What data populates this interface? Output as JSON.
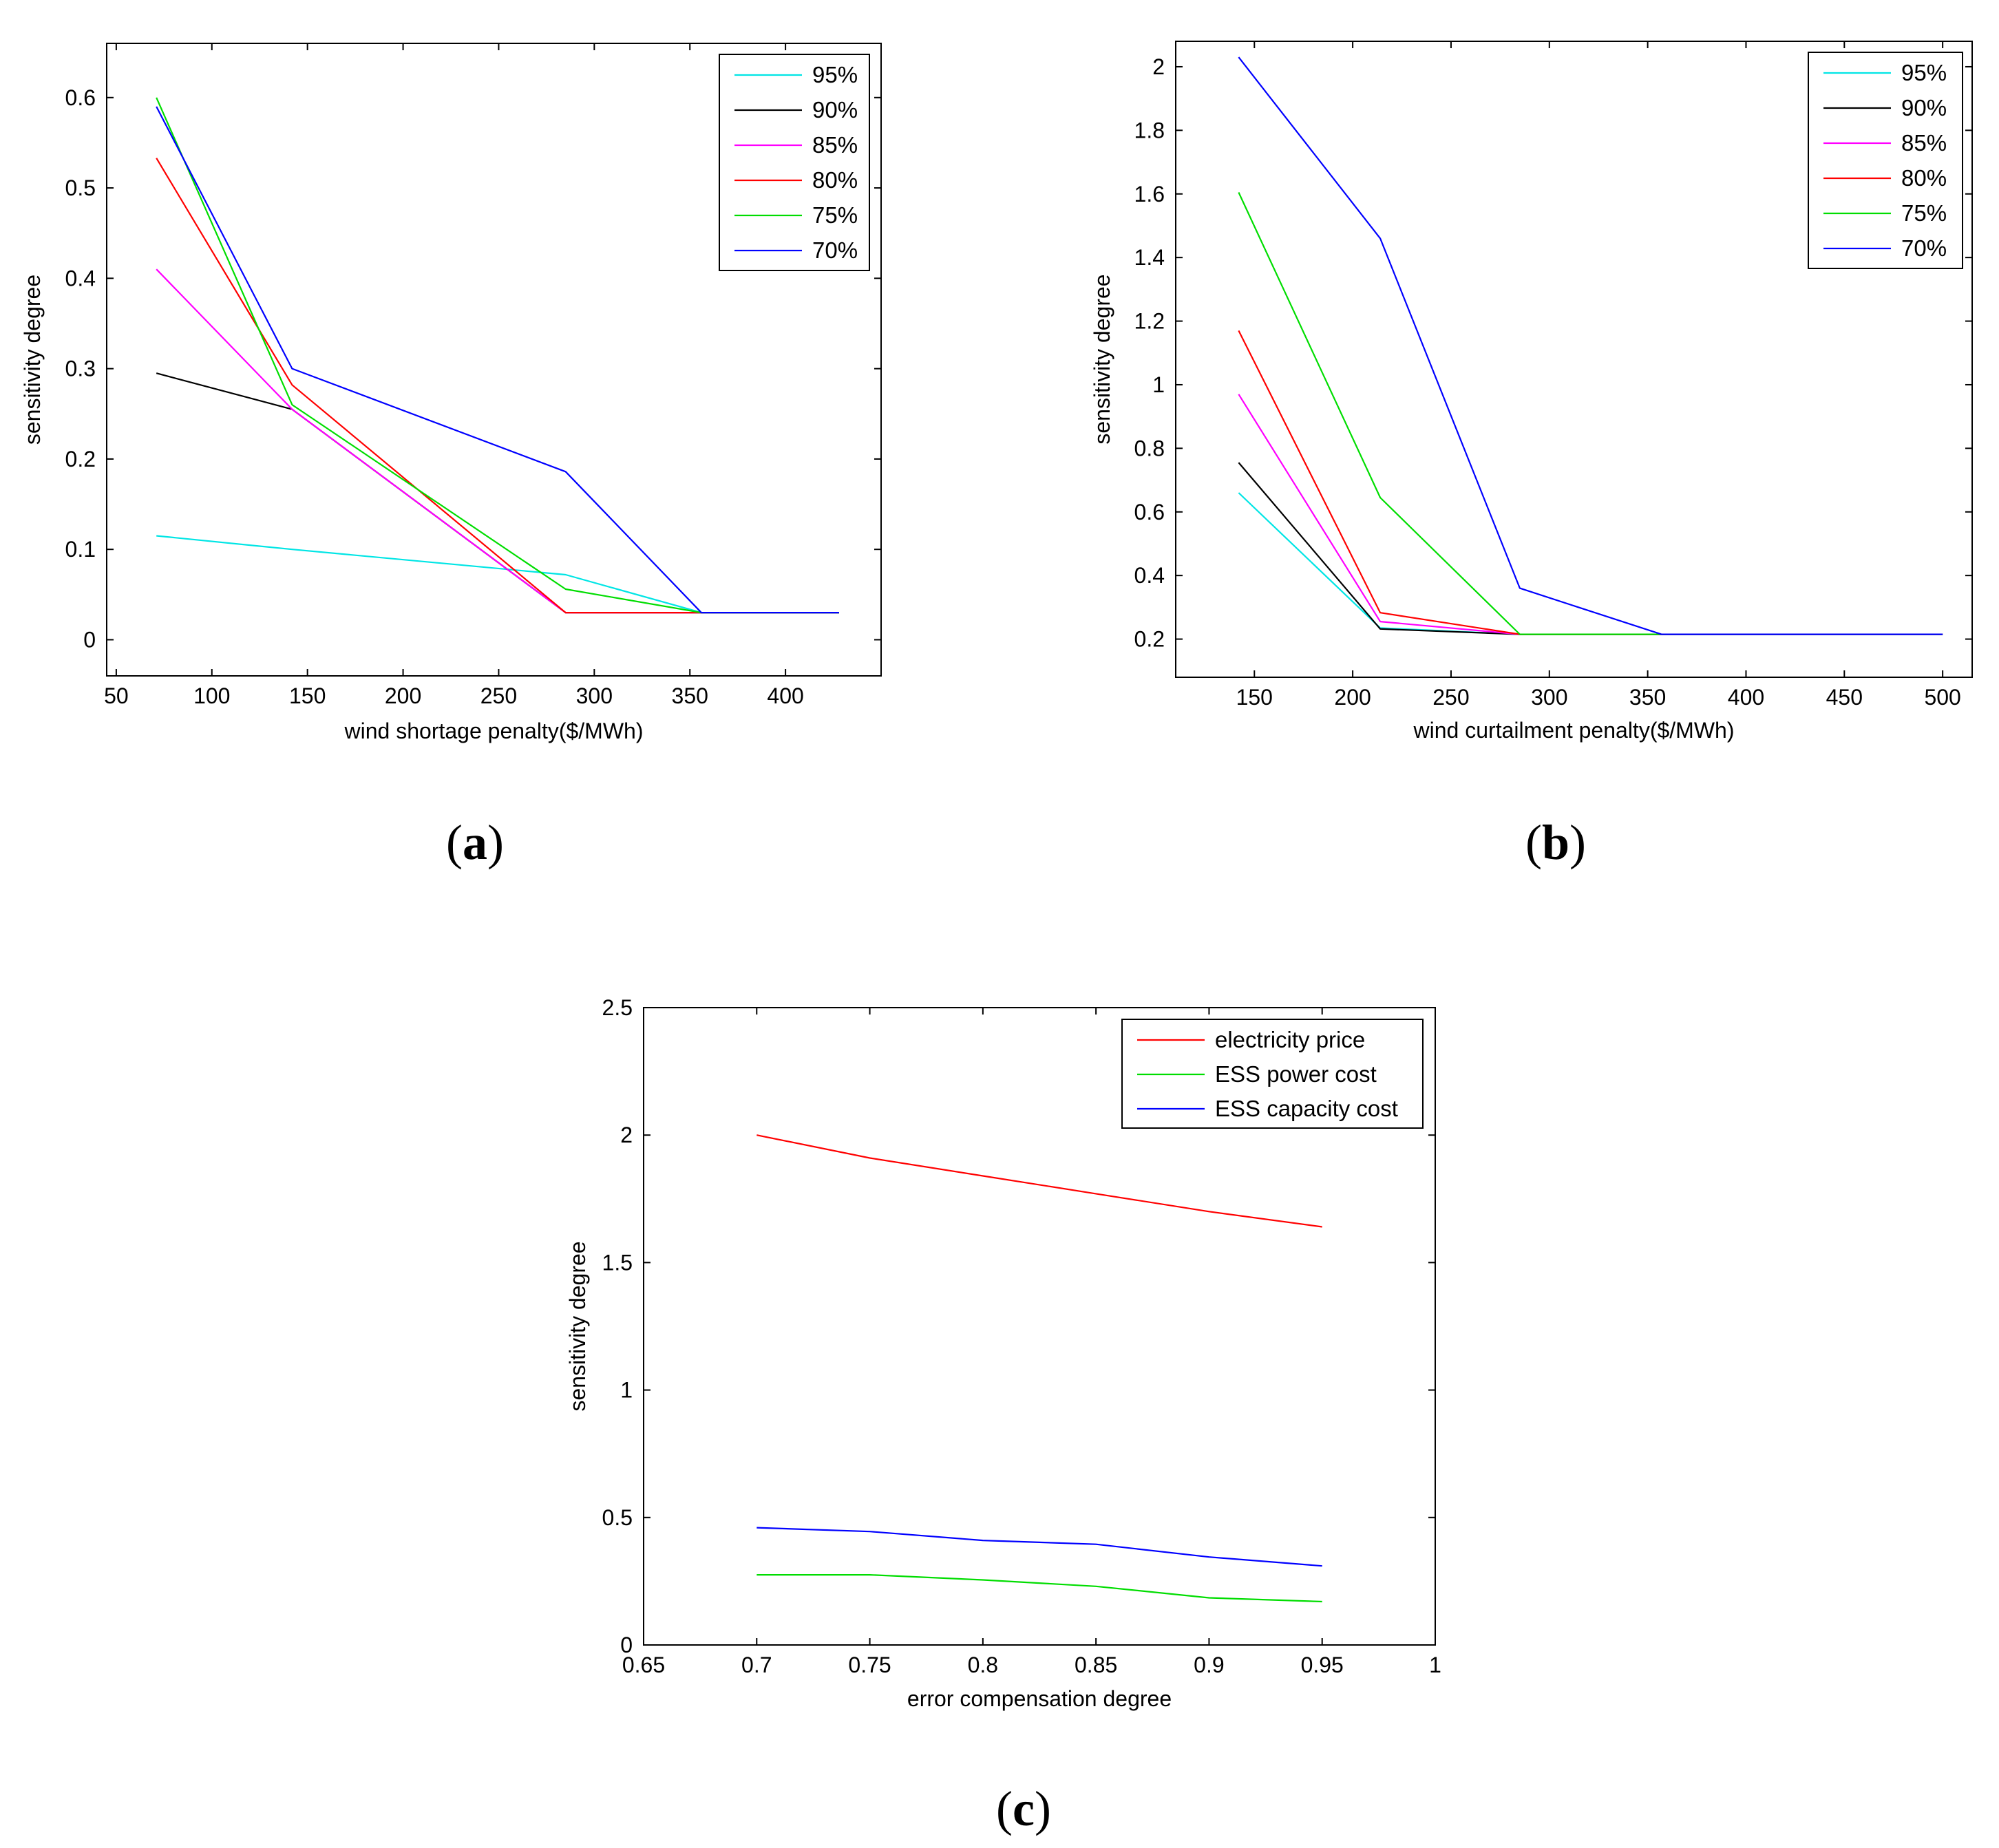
{
  "panel_labels": [
    {
      "open": "(",
      "letter": "a",
      "close": ")"
    },
    {
      "open": "(",
      "letter": "b",
      "close": ")"
    },
    {
      "open": "(",
      "letter": "c",
      "close": ")"
    }
  ],
  "colors": {
    "cyan": "#00e5e5",
    "black": "#000000",
    "magenta": "#ff00ff",
    "red": "#ff0000",
    "green": "#00dd00",
    "blue": "#0000ff"
  },
  "chart_data": [
    {
      "id": "a",
      "type": "line",
      "title": "",
      "xlabel": "wind shortage penalty($/MWh)",
      "ylabel": "sensitivity degree",
      "xlim": [
        45,
        450
      ],
      "ylim": [
        -0.04,
        0.66
      ],
      "xticks": [
        50,
        100,
        150,
        200,
        250,
        300,
        350,
        400
      ],
      "yticks": [
        0,
        0.1,
        0.2,
        0.3,
        0.4,
        0.5,
        0.6
      ],
      "legend_position": "top-right",
      "series": [
        {
          "name": "95%",
          "color": "#00e5e5",
          "x": [
            71,
            142,
            285,
            356,
            428
          ],
          "values": [
            0.115,
            0.1,
            0.072,
            0.03,
            0.03
          ]
        },
        {
          "name": "90%",
          "color": "#000000",
          "x": [
            71,
            142,
            285,
            356,
            428
          ],
          "values": [
            0.295,
            0.255,
            0.03,
            0.03,
            0.03
          ]
        },
        {
          "name": "85%",
          "color": "#ff00ff",
          "x": [
            71,
            142,
            285,
            356,
            428
          ],
          "values": [
            0.41,
            0.255,
            0.03,
            0.03,
            0.03
          ]
        },
        {
          "name": "80%",
          "color": "#ff0000",
          "x": [
            71,
            142,
            285,
            356,
            428
          ],
          "values": [
            0.533,
            0.282,
            0.03,
            0.03,
            0.03
          ]
        },
        {
          "name": "75%",
          "color": "#00dd00",
          "x": [
            71,
            142,
            285,
            356,
            428
          ],
          "values": [
            0.6,
            0.26,
            0.056,
            0.03,
            0.03
          ]
        },
        {
          "name": "70%",
          "color": "#0000ff",
          "x": [
            71,
            142,
            285,
            356,
            428
          ],
          "values": [
            0.59,
            0.3,
            0.186,
            0.03,
            0.03
          ]
        }
      ]
    },
    {
      "id": "b",
      "type": "line",
      "title": "",
      "xlabel": "wind curtailment penalty($/MWh)",
      "ylabel": "sensitivity degree",
      "xlim": [
        110,
        515
      ],
      "ylim": [
        0.08,
        2.08
      ],
      "xticks": [
        150,
        200,
        250,
        300,
        350,
        400,
        450,
        500
      ],
      "yticks": [
        0.2,
        0.4,
        0.6,
        0.8,
        1,
        1.2,
        1.4,
        1.6,
        1.8,
        2
      ],
      "yticklabels": [
        "0.2",
        "0.4",
        "0.6",
        "0.8",
        "1",
        "1.2",
        "1.4",
        "1.6",
        "1.8",
        "2"
      ],
      "legend_position": "top-right",
      "series": [
        {
          "name": "95%",
          "color": "#00e5e5",
          "x": [
            142,
            214,
            285,
            357,
            428,
            500
          ],
          "values": [
            0.66,
            0.235,
            0.215,
            0.215,
            0.215,
            0.215
          ]
        },
        {
          "name": "90%",
          "color": "#000000",
          "x": [
            142,
            214,
            285,
            357,
            428,
            500
          ],
          "values": [
            0.755,
            0.232,
            0.215,
            0.215,
            0.215,
            0.215
          ]
        },
        {
          "name": "85%",
          "color": "#ff00ff",
          "x": [
            142,
            214,
            285,
            357,
            428,
            500
          ],
          "values": [
            0.97,
            0.255,
            0.215,
            0.215,
            0.215,
            0.215
          ]
        },
        {
          "name": "80%",
          "color": "#ff0000",
          "x": [
            142,
            214,
            285,
            357,
            428,
            500
          ],
          "values": [
            1.17,
            0.283,
            0.215,
            0.215,
            0.215,
            0.215
          ]
        },
        {
          "name": "75%",
          "color": "#00dd00",
          "x": [
            142,
            214,
            285,
            357,
            428,
            500
          ],
          "values": [
            1.605,
            0.645,
            0.215,
            0.215,
            0.215,
            0.215
          ]
        },
        {
          "name": "70%",
          "color": "#0000ff",
          "x": [
            142,
            214,
            285,
            357,
            428,
            500
          ],
          "values": [
            2.03,
            1.46,
            0.36,
            0.215,
            0.215,
            0.215
          ]
        }
      ]
    },
    {
      "id": "c",
      "type": "line",
      "title": "",
      "xlabel": "error compensation degree",
      "ylabel": "sensitivity degree",
      "xlim": [
        0.65,
        1
      ],
      "ylim": [
        0,
        2.5
      ],
      "xticks": [
        0.65,
        0.7,
        0.75,
        0.8,
        0.85,
        0.9,
        0.95,
        1
      ],
      "xticklabels": [
        "0.65",
        "0.7",
        "0.75",
        "0.8",
        "0.85",
        "0.9",
        "0.95",
        "1"
      ],
      "yticks": [
        0,
        0.5,
        1,
        1.5,
        2,
        2.5
      ],
      "yticklabels": [
        "0",
        "0.5",
        "1",
        "1.5",
        "2",
        "2.5"
      ],
      "legend_position": "top-right",
      "series": [
        {
          "name": "electricity price",
          "color": "#ff0000",
          "x": [
            0.7,
            0.75,
            0.8,
            0.85,
            0.9,
            0.95
          ],
          "values": [
            2.0,
            1.91,
            1.84,
            1.77,
            1.7,
            1.64
          ]
        },
        {
          "name": "ESS power cost",
          "color": "#00dd00",
          "x": [
            0.7,
            0.75,
            0.8,
            0.85,
            0.9,
            0.95
          ],
          "values": [
            0.275,
            0.275,
            0.255,
            0.23,
            0.185,
            0.17
          ]
        },
        {
          "name": "ESS capacity cost",
          "color": "#0000ff",
          "x": [
            0.7,
            0.75,
            0.8,
            0.85,
            0.9,
            0.95
          ],
          "values": [
            0.46,
            0.445,
            0.41,
            0.395,
            0.345,
            0.31
          ]
        }
      ]
    }
  ]
}
